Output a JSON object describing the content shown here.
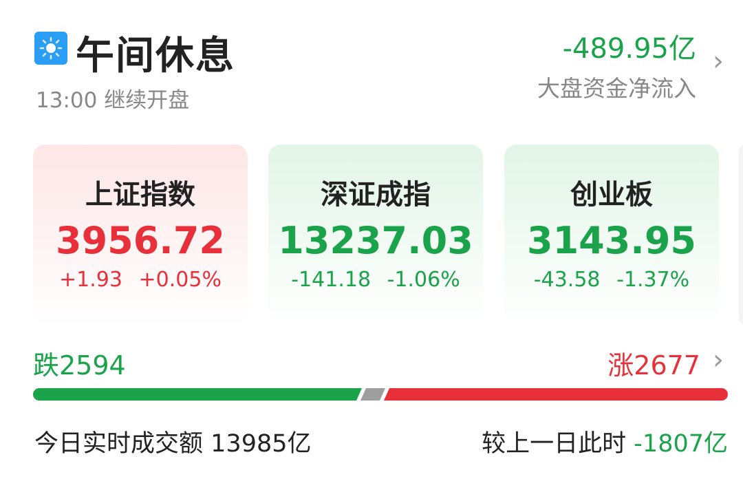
{
  "header": {
    "title": "午间休息",
    "subtitle": "13:00 继续开盘",
    "icon": "sun-icon",
    "net_flow": "-489.95亿",
    "net_flow_label": "大盘资金净流入"
  },
  "indices": [
    {
      "name": "上证指数",
      "value": "3956.72",
      "change": "+1.93",
      "pct": "+0.05%",
      "trend": "up"
    },
    {
      "name": "深证成指",
      "value": "13237.03",
      "change": "-141.18",
      "pct": "-1.06%",
      "trend": "down"
    },
    {
      "name": "创业板",
      "value": "3143.95",
      "change": "-43.58",
      "pct": "-1.37%",
      "trend": "down"
    }
  ],
  "breadth": {
    "fall": "跌2594",
    "rise": "涨2677",
    "fall_count": 2594,
    "rise_count": 2677
  },
  "turnover": {
    "label": "今日实时成交额",
    "value": "13985亿",
    "compare_label": "较上一日此时",
    "compare_value": "-1807亿"
  },
  "colors": {
    "up": "#e8303a",
    "down": "#1aa34a",
    "flat": "#9e9e9e",
    "icon": "#2a9df4"
  }
}
